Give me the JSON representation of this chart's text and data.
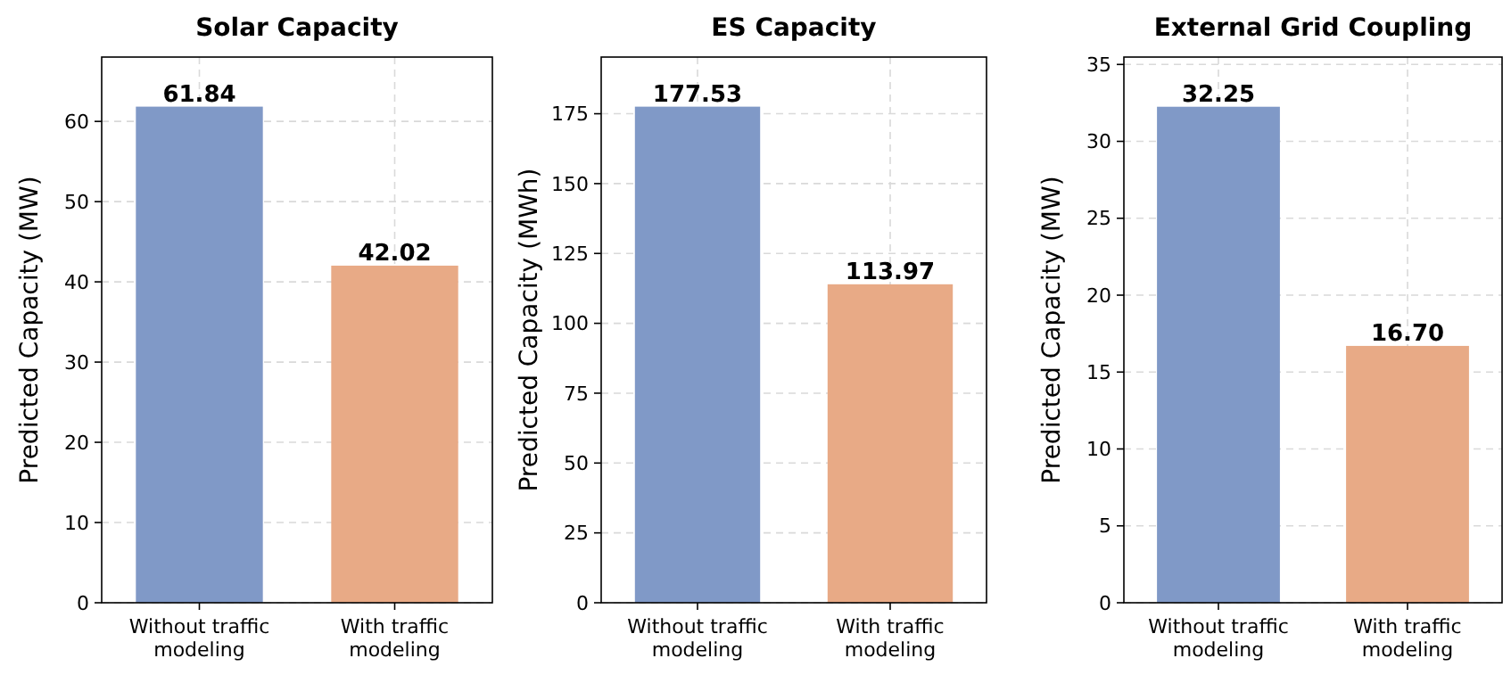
{
  "chart_data": [
    {
      "type": "bar",
      "title": "Solar Capacity",
      "ylabel": "Predicted Capacity (MW)",
      "categories": [
        "Without traffic modeling",
        "With traffic modeling"
      ],
      "values": [
        61.84,
        42.02
      ],
      "colors": [
        "#8099c7",
        "#e8aa86"
      ],
      "value_labels": [
        "61.84",
        "42.02"
      ],
      "ylim": [
        0,
        68.02
      ],
      "yticks": [
        0,
        10,
        20,
        30,
        40,
        50,
        60
      ],
      "grid": true
    },
    {
      "type": "bar",
      "title": "ES Capacity",
      "ylabel": "Predicted Capacity (MWh)",
      "categories": [
        "Without traffic modeling",
        "With traffic modeling"
      ],
      "values": [
        177.53,
        113.97
      ],
      "colors": [
        "#8099c7",
        "#e8aa86"
      ],
      "value_labels": [
        "177.53",
        "113.97"
      ],
      "ylim": [
        0,
        195.28
      ],
      "yticks": [
        0,
        25,
        50,
        75,
        100,
        125,
        150,
        175
      ],
      "grid": true
    },
    {
      "type": "bar",
      "title": "External Grid Coupling",
      "ylabel": "Predicted Capacity (MW)",
      "categories": [
        "Without traffic modeling",
        "With traffic modeling"
      ],
      "values": [
        32.25,
        16.7
      ],
      "colors": [
        "#8099c7",
        "#e8aa86"
      ],
      "value_labels": [
        "32.25",
        "16.70"
      ],
      "ylim": [
        0,
        35.48
      ],
      "yticks": [
        0,
        5,
        10,
        15,
        20,
        25,
        30,
        35
      ],
      "grid": true
    }
  ]
}
